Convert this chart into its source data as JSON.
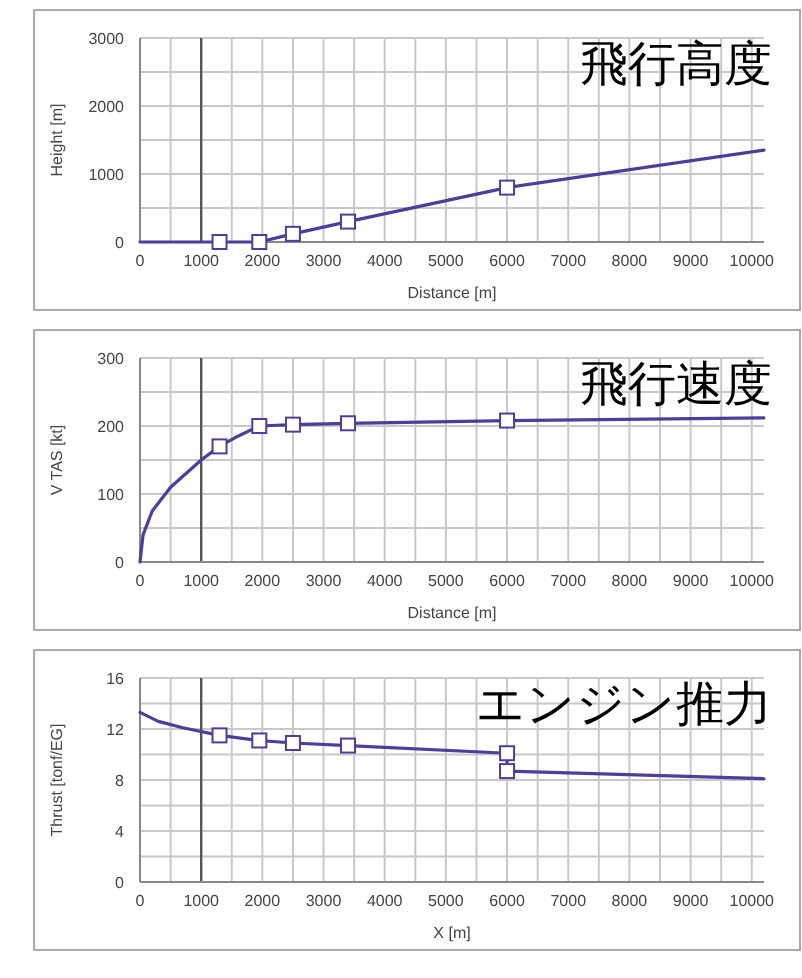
{
  "chart_data": [
    {
      "type": "line",
      "title": "飛行高度",
      "xlabel": "Distance [m]",
      "ylabel": "Height [m]",
      "xlim": [
        0,
        10200
      ],
      "ylim": [
        0,
        3000
      ],
      "grid": true,
      "xticks": [
        0,
        {
          "value": 500,
          "label": null
        },
        1000,
        {
          "value": 1500,
          "label": null
        },
        2000,
        {
          "value": 2500,
          "label": null
        },
        3000,
        {
          "value": 3500,
          "label": null
        },
        4000,
        {
          "value": 4500,
          "label": null
        },
        5000,
        {
          "value": 5500,
          "label": null
        },
        6000,
        {
          "value": 6500,
          "label": null
        },
        7000,
        {
          "value": 7500,
          "label": null
        },
        8000,
        {
          "value": 8500,
          "label": null
        },
        9000,
        {
          "value": 9500,
          "label": null
        },
        10000
      ],
      "yticks": [
        0,
        {
          "value": 500,
          "label": null
        },
        1000,
        {
          "value": 1500,
          "label": null
        },
        2000,
        {
          "value": 2500,
          "label": null
        },
        3000
      ],
      "ref_lines": [
        {
          "axis": "x",
          "value": 1000,
          "color": "#555555"
        }
      ],
      "series": [
        {
          "type": "line",
          "color": "#4b3f9a",
          "marker": "none",
          "line_style": "solid",
          "x": [
            0,
            1950,
            2500,
            3400,
            6000,
            10200
          ],
          "values": [
            0,
            0,
            120,
            300,
            800,
            1350
          ]
        },
        {
          "type": "scatter",
          "color": "#4b3f9a",
          "marker": "square",
          "x": [
            1300,
            1950,
            2500,
            3400,
            6000
          ],
          "values": [
            0,
            0,
            120,
            300,
            800
          ]
        }
      ]
    },
    {
      "type": "line",
      "title": "飛行速度",
      "xlabel": "Distance  [m]",
      "ylabel": "V TAS [kt]",
      "xlim": [
        0,
        10200
      ],
      "ylim": [
        0,
        300
      ],
      "grid": true,
      "xticks": [
        0,
        {
          "value": 500,
          "label": null
        },
        1000,
        {
          "value": 1500,
          "label": null
        },
        2000,
        {
          "value": 2500,
          "label": null
        },
        3000,
        {
          "value": 3500,
          "label": null
        },
        4000,
        {
          "value": 4500,
          "label": null
        },
        5000,
        {
          "value": 5500,
          "label": null
        },
        6000,
        {
          "value": 6500,
          "label": null
        },
        7000,
        {
          "value": 7500,
          "label": null
        },
        8000,
        {
          "value": 8500,
          "label": null
        },
        9000,
        {
          "value": 9500,
          "label": null
        },
        10000
      ],
      "yticks": [
        0,
        {
          "value": 50,
          "label": null
        },
        100,
        {
          "value": 150,
          "label": null
        },
        200,
        {
          "value": 250,
          "label": null
        },
        300
      ],
      "ref_lines": [
        {
          "axis": "x",
          "value": 1000,
          "color": "#555555"
        }
      ],
      "series": [
        {
          "type": "line",
          "color": "#4b3f9a",
          "marker": "none",
          "line_style": "solid",
          "x": [
            0,
            50,
            200,
            500,
            1000,
            1300,
            1600,
            1950,
            2500,
            3400,
            6000,
            10200
          ],
          "values": [
            0,
            40,
            75,
            110,
            150,
            170,
            185,
            200,
            202,
            204,
            208,
            212
          ]
        },
        {
          "type": "scatter",
          "color": "#4b3f9a",
          "marker": "square",
          "x": [
            1300,
            1950,
            2500,
            3400,
            6000
          ],
          "values": [
            170,
            200,
            202,
            204,
            208
          ]
        }
      ]
    },
    {
      "type": "line",
      "title": "エンジン推力",
      "xlabel": "X [m]",
      "ylabel": "Thrust [tonf/EG]",
      "xlim": [
        0,
        10200
      ],
      "ylim": [
        0,
        16
      ],
      "grid": true,
      "xticks": [
        0,
        {
          "value": 500,
          "label": null
        },
        1000,
        {
          "value": 1500,
          "label": null
        },
        2000,
        {
          "value": 2500,
          "label": null
        },
        3000,
        {
          "value": 3500,
          "label": null
        },
        4000,
        {
          "value": 4500,
          "label": null
        },
        5000,
        {
          "value": 5500,
          "label": null
        },
        6000,
        {
          "value": 6500,
          "label": null
        },
        7000,
        {
          "value": 7500,
          "label": null
        },
        8000,
        {
          "value": 8500,
          "label": null
        },
        9000,
        {
          "value": 9500,
          "label": null
        },
        10000
      ],
      "yticks": [
        0,
        {
          "value": 2,
          "label": null
        },
        4,
        {
          "value": 6,
          "label": null
        },
        8,
        {
          "value": 10,
          "label": null
        },
        12,
        {
          "value": 14,
          "label": null
        },
        16
      ],
      "ref_lines": [
        {
          "axis": "x",
          "value": 1000,
          "color": "#555555"
        }
      ],
      "series": [
        {
          "type": "line",
          "color": "#4b3f9a",
          "marker": "none",
          "line_style": "solid",
          "x": [
            0,
            300,
            700,
            1300,
            1950,
            2500,
            3400,
            6000,
            6000,
            10200
          ],
          "values": [
            13.3,
            12.6,
            12.1,
            11.5,
            11.1,
            10.9,
            10.7,
            10.1,
            8.7,
            8.1
          ]
        },
        {
          "type": "scatter",
          "color": "#4b3f9a",
          "marker": "square",
          "x": [
            1300,
            1950,
            2500,
            3400,
            6000,
            6000
          ],
          "values": [
            11.5,
            11.1,
            10.9,
            10.7,
            10.1,
            8.7
          ]
        }
      ]
    }
  ]
}
